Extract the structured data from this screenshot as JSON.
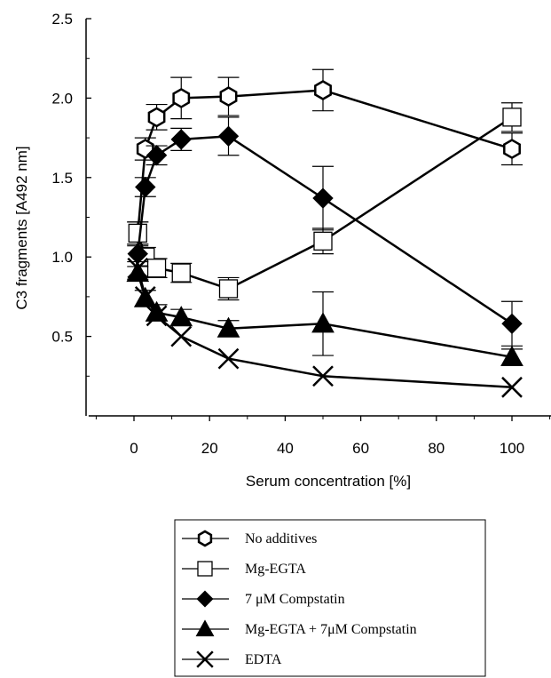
{
  "chart_data": {
    "type": "line",
    "xlabel": "Serum concentration [%]",
    "ylabel": "C3 fragments [A492 nm]",
    "xlim": [
      -12,
      112
    ],
    "ylim": [
      0,
      2.5
    ],
    "xticks": [
      0,
      20,
      40,
      60,
      80,
      100
    ],
    "yticks": [
      0.5,
      1.0,
      1.5,
      2.0,
      2.5
    ],
    "ytick_labels": [
      "0.5",
      "1.0",
      "1.5",
      "2.0",
      "2.5"
    ],
    "grid": false,
    "legend_position": "bottom",
    "series": [
      {
        "name": "No additives",
        "marker": "open-hexagon",
        "color": "#000000",
        "x": [
          1,
          3,
          6,
          12.5,
          25,
          50,
          100
        ],
        "y": [
          1.15,
          1.68,
          1.88,
          2.0,
          2.01,
          2.05,
          1.68
        ],
        "err": [
          0.07,
          0.07,
          0.08,
          0.13,
          0.12,
          0.13,
          0.1
        ]
      },
      {
        "name": "Mg-EGTA",
        "marker": "open-square",
        "color": "#000000",
        "x": [
          1,
          3,
          6,
          12.5,
          25,
          50,
          100
        ],
        "y": [
          1.15,
          1.0,
          0.93,
          0.9,
          0.8,
          1.1,
          1.88
        ],
        "err": [
          0.07,
          0.06,
          0.06,
          0.06,
          0.07,
          0.08,
          0.09
        ]
      },
      {
        "name": "7 μM Compstatin",
        "marker": "filled-diamond",
        "color": "#000000",
        "x": [
          1,
          3,
          6,
          12.5,
          25,
          50,
          100
        ],
        "y": [
          1.02,
          1.44,
          1.64,
          1.74,
          1.76,
          1.37,
          0.58
        ],
        "err": [
          0.05,
          0.06,
          0.06,
          0.07,
          0.12,
          0.2,
          0.14
        ]
      },
      {
        "name": "Mg-EGTA + 7μM Compstatin",
        "marker": "filled-triangle",
        "color": "#000000",
        "x": [
          1,
          3,
          6,
          12.5,
          25,
          50,
          100
        ],
        "y": [
          0.9,
          0.74,
          0.65,
          0.62,
          0.55,
          0.58,
          0.37
        ],
        "err": [
          0.04,
          0.05,
          0.05,
          0.05,
          0.05,
          0.2,
          0.05
        ]
      },
      {
        "name": "EDTA",
        "marker": "cross",
        "color": "#000000",
        "x": [
          1,
          3,
          6,
          12.5,
          25,
          50,
          100
        ],
        "y": [
          0.93,
          0.75,
          0.63,
          0.5,
          0.36,
          0.25,
          0.18
        ],
        "err": [
          0,
          0,
          0,
          0,
          0,
          0,
          0
        ]
      }
    ]
  }
}
